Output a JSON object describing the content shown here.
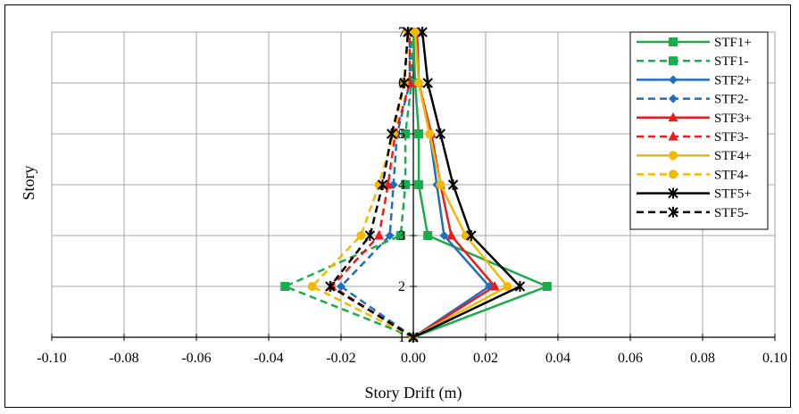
{
  "chart_data": {
    "type": "line",
    "xlabel": "Story Drift (m)",
    "ylabel": "Story",
    "xlim": [
      -0.1,
      0.1
    ],
    "ylim": [
      1,
      7
    ],
    "x_ticks": [
      "-0.10",
      "-0.08",
      "-0.06",
      "-0.04",
      "-0.02",
      "0.00",
      "0.02",
      "0.04",
      "0.06",
      "0.08",
      "0.10"
    ],
    "y_ticks": [
      "1",
      "2",
      "3",
      "4",
      "5",
      "6",
      "7"
    ],
    "grid": true,
    "legend_position": "top-right",
    "stories": [
      1,
      2,
      3,
      4,
      5,
      6,
      7
    ],
    "series": [
      {
        "name": "STF1+",
        "color": "#1aab4b",
        "dash": "solid",
        "marker": "square",
        "x": [
          0.0,
          0.037,
          0.004,
          0.0015,
          0.0015,
          0.0005,
          0.0
        ]
      },
      {
        "name": "STF1-",
        "color": "#1aab4b",
        "dash": "dashed",
        "marker": "square",
        "x": [
          0.0,
          -0.0355,
          -0.0035,
          -0.0022,
          -0.0022,
          -0.0005,
          -0.0005
        ]
      },
      {
        "name": "STF2+",
        "color": "#1f6fbf",
        "dash": "solid",
        "marker": "diamond",
        "x": [
          0.0,
          0.021,
          0.0085,
          0.0065,
          0.0045,
          0.0015,
          0.001
        ]
      },
      {
        "name": "STF2-",
        "color": "#1f6fbf",
        "dash": "dashed",
        "marker": "diamond",
        "x": [
          0.0,
          -0.02,
          -0.0065,
          -0.0055,
          -0.0045,
          -0.001,
          -0.001
        ]
      },
      {
        "name": "STF3+",
        "color": "#e81c1c",
        "dash": "solid",
        "marker": "triangle",
        "x": [
          0.0,
          0.0225,
          0.0105,
          0.0075,
          0.005,
          0.0015,
          0.001
        ]
      },
      {
        "name": "STF3-",
        "color": "#e81c1c",
        "dash": "dashed",
        "marker": "triangle",
        "x": [
          0.0,
          -0.0225,
          -0.0095,
          -0.007,
          -0.005,
          -0.001,
          -0.001
        ]
      },
      {
        "name": "STF4+",
        "color": "#f5b800",
        "dash": "solid",
        "marker": "circle",
        "x": [
          0.0,
          0.026,
          0.0145,
          0.0075,
          0.0045,
          0.0015,
          0.0005
        ]
      },
      {
        "name": "STF4-",
        "color": "#f5b800",
        "dash": "dashed",
        "marker": "circle",
        "x": [
          0.0,
          -0.028,
          -0.0145,
          -0.0095,
          -0.0055,
          -0.0025,
          -0.0015
        ]
      },
      {
        "name": "STF5+",
        "color": "#000000",
        "dash": "solid",
        "marker": "star",
        "x": [
          0.0,
          0.0295,
          0.016,
          0.011,
          0.0075,
          0.004,
          0.0025
        ]
      },
      {
        "name": "STF5-",
        "color": "#000000",
        "dash": "dashed",
        "marker": "star",
        "x": [
          0.0,
          -0.023,
          -0.012,
          -0.0085,
          -0.006,
          -0.0025,
          -0.0015
        ]
      }
    ]
  }
}
